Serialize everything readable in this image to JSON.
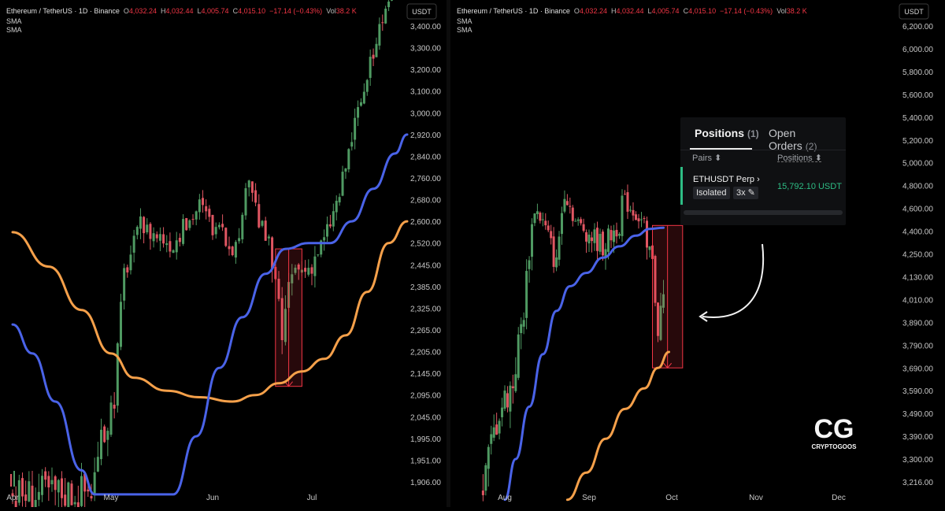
{
  "left_panel": {
    "symbol": "Ethereum / TetherUS · 1D · Binance",
    "o_label": "O",
    "o_value": "4,032.24",
    "h_label": "H",
    "h_value": "4,032.44",
    "l_label": "L",
    "l_value": "4,005.74",
    "c_label": "C",
    "c_value": "4,015.10",
    "change": "−17.14 (−0.43%)",
    "vol_label": "Vol",
    "vol_value": "38.2 K",
    "indicators": [
      "SMA",
      "SMA"
    ],
    "currency_button": "USDT"
  },
  "right_panel": {
    "symbol": "Ethereum / TetherUS · 1D · Binance",
    "o_label": "O",
    "o_value": "4,032.24",
    "h_label": "H",
    "h_value": "4,032.44",
    "l_label": "L",
    "l_value": "4,005.74",
    "c_label": "C",
    "c_value": "4,015.10",
    "change": "−17.14 (−0.43%)",
    "vol_label": "Vol",
    "vol_value": "38.2 K",
    "indicators": [
      "SMA",
      "SMA"
    ],
    "currency_button": "USDT"
  },
  "positions_popup": {
    "tab_positions": "Positions",
    "tab_positions_count": "(1)",
    "tab_orders": "Open Orders",
    "tab_orders_count": "(2)",
    "col_pairs": "Pairs ⬍",
    "col_positions": "Positions ⬍",
    "pair": "ETHUSDT Perp  ›",
    "margin_mode": "Isolated",
    "leverage": "3x ✎",
    "position_value": "15,792.10 USDT"
  },
  "watermark": {
    "brand": "CRYPTOGOOS",
    "logo": "CG"
  },
  "colors": {
    "up": "#4f9a62",
    "down": "#e05662",
    "sma_fast": "#4a63e8",
    "sma_slow": "#f5a04a",
    "grid_text": "#c8c8c8",
    "green_text": "#2ebd85",
    "red_text": "#f23645"
  },
  "chart_data": [
    {
      "type": "candlestick",
      "title": "Ethereum / TetherUS · 1D · Binance",
      "x_labels": [
        "Apr",
        "May",
        "Jun",
        "Jul"
      ],
      "y_tick_labels": [
        "3,400.00",
        "3,300.00",
        "3,200.00",
        "3,100.00",
        "3,000.00",
        "2,920.00",
        "2,840.00",
        "2,760.00",
        "2,680.00",
        "2,600.00",
        "2,520.00",
        "2,445.00",
        "2,385.00",
        "2,325.00",
        "2,265.00",
        "2,205.00",
        "2,145.00",
        "2,095.00",
        "2,045.00",
        "1,995.00",
        "1,951.00",
        "1,906.00"
      ],
      "y_tick_values": [
        3400,
        3300,
        3200,
        3100,
        3000,
        2920,
        2840,
        2760,
        2680,
        2600,
        2520,
        2445,
        2385,
        2325,
        2265,
        2205,
        2145,
        2095,
        2045,
        1995,
        1951,
        1906
      ],
      "ylim": [
        1880,
        3500
      ],
      "series": [
        {
          "name": "SMA",
          "values": [
            [
              "2025-04-01",
              2560
            ],
            [
              "2025-04-12",
              2440
            ],
            [
              "2025-04-22",
              2320
            ],
            [
              "2025-05-01",
              2200
            ],
            [
              "2025-05-08",
              2135
            ],
            [
              "2025-05-18",
              2105
            ],
            [
              "2025-05-28",
              2090
            ],
            [
              "2025-06-07",
              2080
            ],
            [
              "2025-06-14",
              2095
            ],
            [
              "2025-06-21",
              2122
            ],
            [
              "2025-06-28",
              2150
            ],
            [
              "2025-07-05",
              2185
            ],
            [
              "2025-07-12",
              2250
            ],
            [
              "2025-07-19",
              2370
            ],
            [
              "2025-07-26",
              2520
            ],
            [
              "2025-08-01",
              2600
            ]
          ]
        },
        {
          "name": "SMA",
          "values": [
            [
              "2025-04-01",
              2280
            ],
            [
              "2025-04-07",
              2200
            ],
            [
              "2025-04-14",
              2080
            ],
            [
              "2025-04-22",
              1930
            ],
            [
              "2025-04-26",
              1880
            ],
            [
              "2025-05-20",
              1880
            ],
            [
              "2025-05-27",
              2000
            ],
            [
              "2025-06-03",
              2160
            ],
            [
              "2025-06-10",
              2300
            ],
            [
              "2025-06-17",
              2420
            ],
            [
              "2025-06-23",
              2500
            ],
            [
              "2025-06-30",
              2520
            ],
            [
              "2025-07-07",
              2520
            ],
            [
              "2025-07-14",
              2600
            ],
            [
              "2025-07-21",
              2720
            ],
            [
              "2025-07-28",
              2850
            ],
            [
              "2025-08-01",
              2920
            ]
          ]
        }
      ],
      "highlight_box": {
        "from": "2025-06-20",
        "to": "2025-06-28",
        "high": 2500,
        "low": 2115
      }
    },
    {
      "type": "candlestick",
      "title": "Ethereum / TetherUS · 1D · Binance",
      "x_labels": [
        "Aug",
        "Sep",
        "Oct",
        "Nov",
        "Dec"
      ],
      "y_tick_labels": [
        "6,200.00",
        "6,000.00",
        "5,800.00",
        "5,600.00",
        "5,400.00",
        "5,200.00",
        "5,000.00",
        "4,800.00",
        "4,600.00",
        "4,400.00",
        "4,250.00",
        "4,130.00",
        "4,010.00",
        "3,890.00",
        "3,790.00",
        "3,690.00",
        "3,590.00",
        "3,490.00",
        "3,390.00",
        "3,300.00",
        "3,216.00"
      ],
      "y_tick_values": [
        6200,
        6000,
        5800,
        5600,
        5400,
        5200,
        5000,
        4800,
        4600,
        4400,
        4250,
        4130,
        4010,
        3890,
        3790,
        3690,
        3590,
        3490,
        3390,
        3300,
        3216
      ],
      "ylim": [
        3150,
        6300
      ],
      "series": [
        {
          "name": "SMA",
          "values": [
            [
              "2025-08-24",
              3150
            ],
            [
              "2025-08-31",
              3250
            ],
            [
              "2025-09-07",
              3380
            ],
            [
              "2025-09-14",
              3510
            ],
            [
              "2025-09-21",
              3600
            ],
            [
              "2025-09-26",
              3690
            ],
            [
              "2025-09-30",
              3760
            ]
          ]
        },
        {
          "name": "SMA",
          "values": [
            [
              "2025-08-01",
              3150
            ],
            [
              "2025-08-05",
              3300
            ],
            [
              "2025-08-10",
              3520
            ],
            [
              "2025-08-15",
              3750
            ],
            [
              "2025-08-20",
              3950
            ],
            [
              "2025-08-25",
              4080
            ],
            [
              "2025-08-31",
              4150
            ],
            [
              "2025-09-06",
              4230
            ],
            [
              "2025-09-12",
              4300
            ],
            [
              "2025-09-18",
              4370
            ],
            [
              "2025-09-23",
              4420
            ],
            [
              "2025-09-28",
              4430
            ]
          ]
        }
      ],
      "highlight_box": {
        "from": "2025-09-24",
        "to": "2025-10-05",
        "high": 4450,
        "low": 3690
      }
    }
  ]
}
